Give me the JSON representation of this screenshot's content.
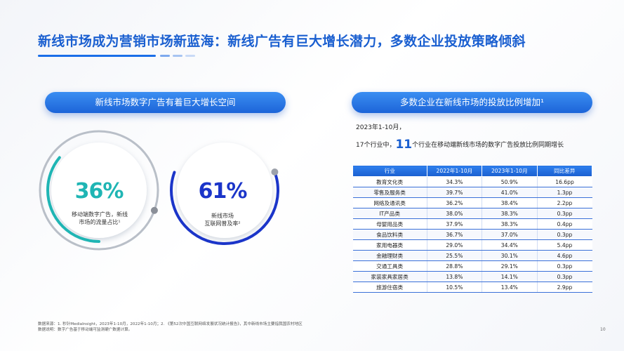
{
  "header": {
    "title": "新线市场成为营销市场新蓝海：新线广告有巨大增长潜力，多数企业投放策略倾斜"
  },
  "left_panel": {
    "pill_label": "新线市场数字广告有着巨大增长空间",
    "circle1": {
      "value": "36%",
      "desc_line1": "移动端数字广告，新线",
      "desc_line2": "市场的流量占比¹",
      "progress": 0.36,
      "color": "#1fb5b4"
    },
    "circle2": {
      "value": "61%",
      "desc_line1": "新线市场",
      "desc_line2": "互联网普及率²",
      "progress": 0.61,
      "color": "#1b35c9"
    }
  },
  "right_panel": {
    "pill_label": "多数企业在新线市场的投放比例增加¹",
    "date_text": "2023年1-10月，",
    "desc_prefix": "17个行业中，",
    "desc_highlight": "11",
    "desc_suffix": "个行业在移动端新线市场的数字广告投放比例同期增长",
    "table": {
      "headers": [
        "行业",
        "2022年1-10月",
        "2023年1-10月",
        "同比差异"
      ],
      "rows": [
        [
          "教育文化类",
          "34.3%",
          "50.9%",
          "16.6pp"
        ],
        [
          "零售及服务类",
          "39.7%",
          "41.0%",
          "1.3pp"
        ],
        [
          "网络及通讯类",
          "36.2%",
          "38.4%",
          "2.2pp"
        ],
        [
          "IT产品类",
          "38.0%",
          "38.3%",
          "0.3pp"
        ],
        [
          "母婴用品类",
          "37.9%",
          "38.3%",
          "0.4pp"
        ],
        [
          "食品饮料类",
          "36.7%",
          "37.0%",
          "0.3pp"
        ],
        [
          "家用电器类",
          "29.0%",
          "34.4%",
          "5.4pp"
        ],
        [
          "金融理财类",
          "25.5%",
          "30.1%",
          "4.6pp"
        ],
        [
          "交通工具类",
          "28.8%",
          "29.1%",
          "0.3pp"
        ],
        [
          "家装家具家居类",
          "13.8%",
          "14.1%",
          "0.3pp"
        ],
        [
          "旅游住宿类",
          "10.5%",
          "13.4%",
          "2.9pp"
        ]
      ]
    }
  },
  "footer": {
    "source_line": "数据来源：1. 秒针MediaInsight，2023年1-10月，2022年1-10月；2. 《第52次中国互联网络发展状况统计报告》，其中新线市场主要指我国农村地区",
    "note_line": "数据说明：数字广告基于移动端可监测硬广数据计算。",
    "page_number": "10"
  }
}
